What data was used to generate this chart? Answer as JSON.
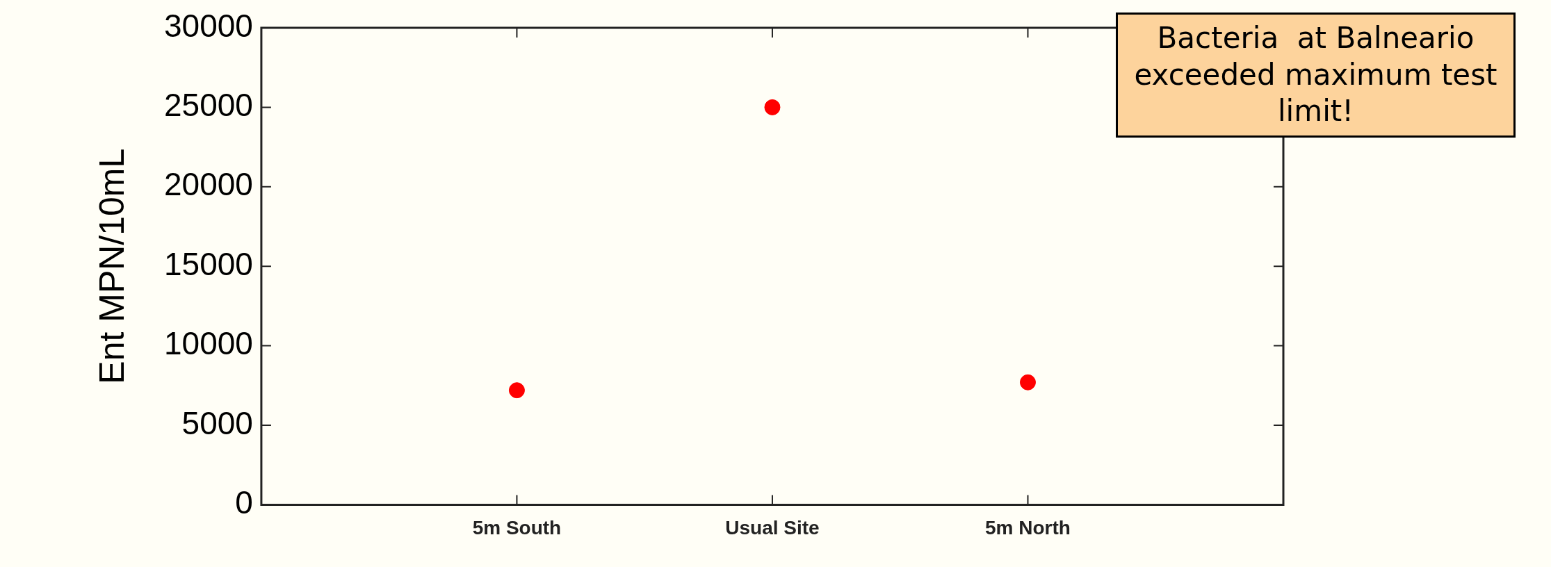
{
  "chart_data": {
    "type": "scatter",
    "categories": [
      "5m South",
      "Usual Site",
      "5m North"
    ],
    "values": [
      7200,
      25000,
      7700
    ],
    "color": "#ff0000",
    "marker": "circle",
    "ylim": [
      0,
      30000
    ],
    "yticks": [
      0,
      5000,
      10000,
      15000,
      20000,
      25000,
      30000
    ],
    "ylabel": "Ent MPN/10mL",
    "grid": false,
    "legend": false,
    "annotations": [
      "Bacteria  at Balneario exceeded maximum test limit!"
    ]
  }
}
